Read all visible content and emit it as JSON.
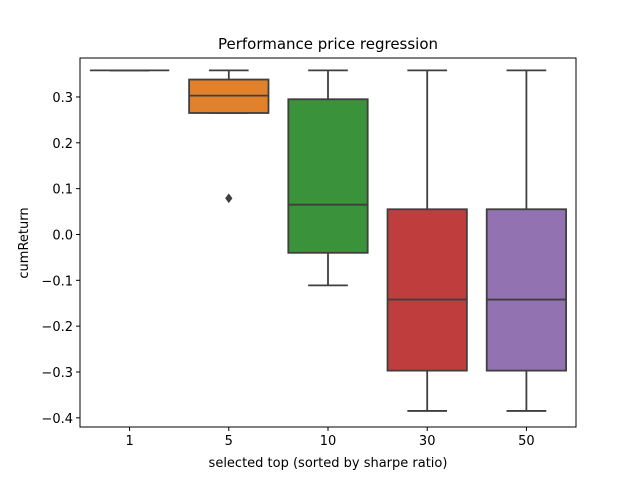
{
  "chart_data": {
    "type": "box",
    "title": "Performance price regression",
    "xlabel": "selected top (sorted by sharpe ratio)",
    "ylabel": "cumReturn",
    "ylim": [
      -0.42,
      0.385
    ],
    "yticks": [
      0.3,
      0.2,
      0.1,
      0.0,
      -0.1,
      -0.2,
      -0.3,
      -0.4
    ],
    "ytick_labels": [
      "0.3",
      "0.2",
      "0.1",
      "0.0",
      "−0.1",
      "−0.2",
      "−0.3",
      "−0.4"
    ],
    "grid": false,
    "categories": [
      "1",
      "5",
      "10",
      "30",
      "50"
    ],
    "boxes": [
      {
        "category": "1",
        "whisker_low": 0.358,
        "q1": 0.358,
        "median": 0.358,
        "q3": 0.358,
        "whisker_high": 0.358,
        "outliers": [],
        "color": "#3274a1"
      },
      {
        "category": "5",
        "whisker_low": 0.265,
        "q1": 0.265,
        "median": 0.303,
        "q3": 0.338,
        "whisker_high": 0.358,
        "outliers": [
          0.079
        ],
        "color": "#e1812c"
      },
      {
        "category": "10",
        "whisker_low": -0.111,
        "q1": -0.04,
        "median": 0.065,
        "q3": 0.295,
        "whisker_high": 0.358,
        "outliers": [],
        "color": "#3a923a"
      },
      {
        "category": "30",
        "whisker_low": -0.385,
        "q1": -0.297,
        "median": -0.142,
        "q3": 0.055,
        "whisker_high": 0.358,
        "outliers": [],
        "color": "#c03d3e"
      },
      {
        "category": "50",
        "whisker_low": -0.385,
        "q1": -0.297,
        "median": -0.142,
        "q3": 0.055,
        "whisker_high": 0.358,
        "outliers": [],
        "color": "#9372b2"
      }
    ]
  }
}
